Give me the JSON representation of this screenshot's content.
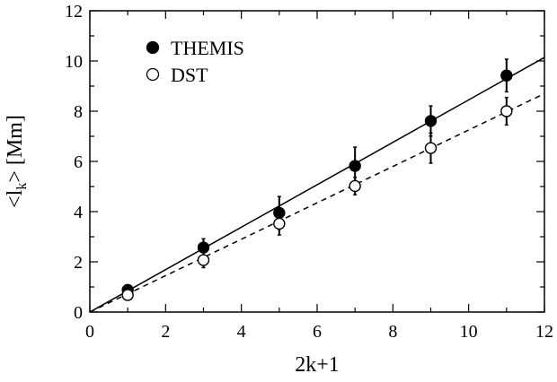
{
  "chart_data": {
    "type": "scatter",
    "xlabel": "2k+1",
    "ylabel_main": "<l",
    "ylabel_sub": "k",
    "ylabel_tail": "> [Mm]",
    "xlim": [
      0,
      12
    ],
    "ylim": [
      0,
      12
    ],
    "xticks": [
      0,
      2,
      4,
      6,
      8,
      10,
      12
    ],
    "yticks": [
      0,
      2,
      4,
      6,
      8,
      10,
      12
    ],
    "grid": false,
    "legend_position": "top-left",
    "series": [
      {
        "name": "THEMIS",
        "marker": "filled-circle",
        "x": [
          1,
          3,
          5,
          7,
          9,
          11
        ],
        "y": [
          0.88,
          2.57,
          3.95,
          5.82,
          7.61,
          9.42
        ],
        "yerr": [
          0.15,
          0.35,
          0.65,
          0.75,
          0.6,
          0.65
        ],
        "fit": {
          "style": "solid",
          "slope": 0.845,
          "intercept": 0
        }
      },
      {
        "name": "DST",
        "marker": "open-circle",
        "x": [
          1,
          3,
          5,
          7,
          9,
          11
        ],
        "y": [
          0.68,
          2.07,
          3.52,
          5.02,
          6.53,
          8.0
        ],
        "yerr": [
          0.1,
          0.3,
          0.45,
          0.35,
          0.6,
          0.55
        ],
        "fit": {
          "style": "dashed",
          "slope": 0.725,
          "intercept": 0
        }
      }
    ]
  }
}
